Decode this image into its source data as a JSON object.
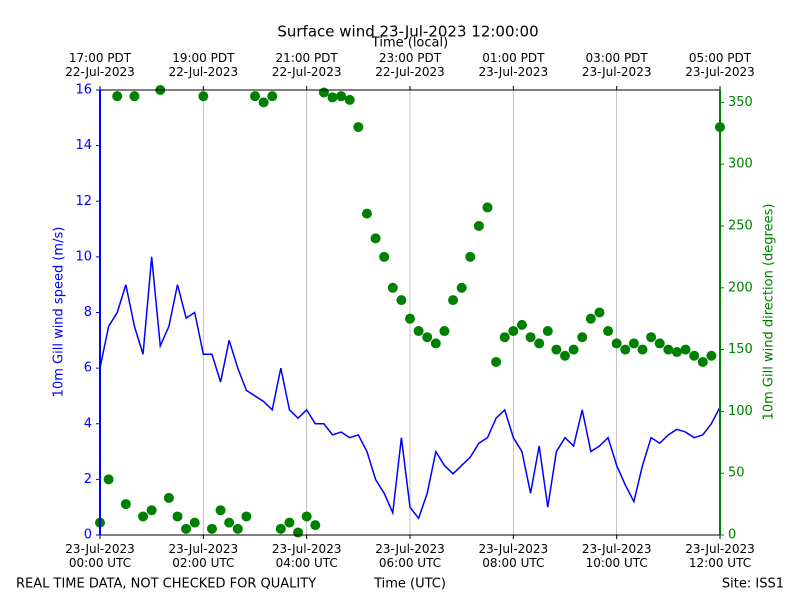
{
  "chart_data": {
    "type": "line_scatter",
    "title": "Surface wind 23-Jul-2023 12:00:00",
    "xlabel": "Time (UTC)",
    "x2label": "Time (local)",
    "ylabel": "10m Gill wind speed (m/s)",
    "y2label": "10m Gill wind direction (degrees)",
    "footer_left": "REAL TIME DATA, NOT CHECKED FOR QUALITY",
    "footer_right": "Site: ISS1",
    "xlim": [
      0,
      720
    ],
    "xticks": [
      {
        "value": 0,
        "label": "23-Jul-2023\n00:00 UTC"
      },
      {
        "value": 120,
        "label": "23-Jul-2023\n02:00 UTC"
      },
      {
        "value": 240,
        "label": "23-Jul-2023\n04:00 UTC"
      },
      {
        "value": 360,
        "label": "23-Jul-2023\n06:00 UTC"
      },
      {
        "value": 480,
        "label": "23-Jul-2023\n08:00 UTC"
      },
      {
        "value": 600,
        "label": "23-Jul-2023\n10:00 UTC"
      },
      {
        "value": 720,
        "label": "23-Jul-2023\n12:00 UTC"
      }
    ],
    "x2ticks": [
      {
        "value": 0,
        "label": "17:00 PDT\n22-Jul-2023"
      },
      {
        "value": 120,
        "label": "19:00 PDT\n22-Jul-2023"
      },
      {
        "value": 240,
        "label": "21:00 PDT\n22-Jul-2023"
      },
      {
        "value": 360,
        "label": "23:00 PDT\n22-Jul-2023"
      },
      {
        "value": 480,
        "label": "01:00 PDT\n23-Jul-2023"
      },
      {
        "value": 600,
        "label": "03:00 PDT\n23-Jul-2023"
      },
      {
        "value": 720,
        "label": "05:00 PDT\n23-Jul-2023"
      }
    ],
    "ylim": [
      0,
      16
    ],
    "yticks": [
      0,
      2,
      4,
      6,
      8,
      10,
      12,
      14,
      16
    ],
    "y2lim": [
      0,
      360
    ],
    "y2ticks": [
      0,
      50,
      100,
      150,
      200,
      250,
      300,
      350
    ],
    "grid": true,
    "x": [
      0,
      10,
      20,
      30,
      40,
      50,
      60,
      70,
      80,
      90,
      100,
      110,
      120,
      130,
      140,
      150,
      160,
      170,
      180,
      190,
      200,
      210,
      220,
      230,
      240,
      250,
      260,
      270,
      280,
      290,
      300,
      310,
      320,
      330,
      340,
      350,
      360,
      370,
      380,
      390,
      400,
      410,
      420,
      430,
      440,
      450,
      460,
      470,
      480,
      490,
      500,
      510,
      520,
      530,
      540,
      550,
      560,
      570,
      580,
      590,
      600,
      610,
      620,
      630,
      640,
      650,
      660,
      670,
      680,
      690,
      700,
      710,
      720
    ],
    "series": [
      {
        "name": "10m Gill wind speed (m/s)",
        "color": "#0000ff",
        "kind": "line",
        "axis": "y",
        "values": [
          6.0,
          7.5,
          8.0,
          9.0,
          7.5,
          6.5,
          10.0,
          6.8,
          7.5,
          9.0,
          7.8,
          8.0,
          6.5,
          6.5,
          5.5,
          7.0,
          6.0,
          5.2,
          5.0,
          4.8,
          4.5,
          6.0,
          4.5,
          4.2,
          4.5,
          4.0,
          4.0,
          3.6,
          3.7,
          3.5,
          3.6,
          3.0,
          2.0,
          1.5,
          0.8,
          3.5,
          1.0,
          0.6,
          1.5,
          3.0,
          2.5,
          2.2,
          2.5,
          2.8,
          3.3,
          3.5,
          4.2,
          4.5,
          3.5,
          3.0,
          1.5,
          3.2,
          1.0,
          3.0,
          3.5,
          3.2,
          4.5,
          3.0,
          3.2,
          3.5,
          2.5,
          1.8,
          1.2,
          2.5,
          3.5,
          3.3,
          3.6,
          3.8,
          3.7,
          3.5,
          3.6,
          4.0,
          4.6
        ]
      },
      {
        "name": "10m Gill wind direction (degrees)",
        "color": "#008000",
        "kind": "scatter",
        "axis": "y2",
        "values": [
          10,
          45,
          355,
          25,
          355,
          15,
          20,
          360,
          30,
          15,
          5,
          10,
          355,
          5,
          20,
          10,
          5,
          15,
          355,
          350,
          355,
          5,
          10,
          2,
          15,
          8,
          358,
          354,
          355,
          352,
          330,
          260,
          240,
          225,
          200,
          190,
          175,
          165,
          160,
          155,
          165,
          190,
          200,
          225,
          250,
          265,
          140,
          160,
          165,
          170,
          160,
          155,
          165,
          150,
          145,
          150,
          160,
          175,
          180,
          165,
          155,
          150,
          155,
          150,
          160,
          155,
          150,
          148,
          150,
          145,
          140,
          145,
          330
        ]
      }
    ]
  }
}
